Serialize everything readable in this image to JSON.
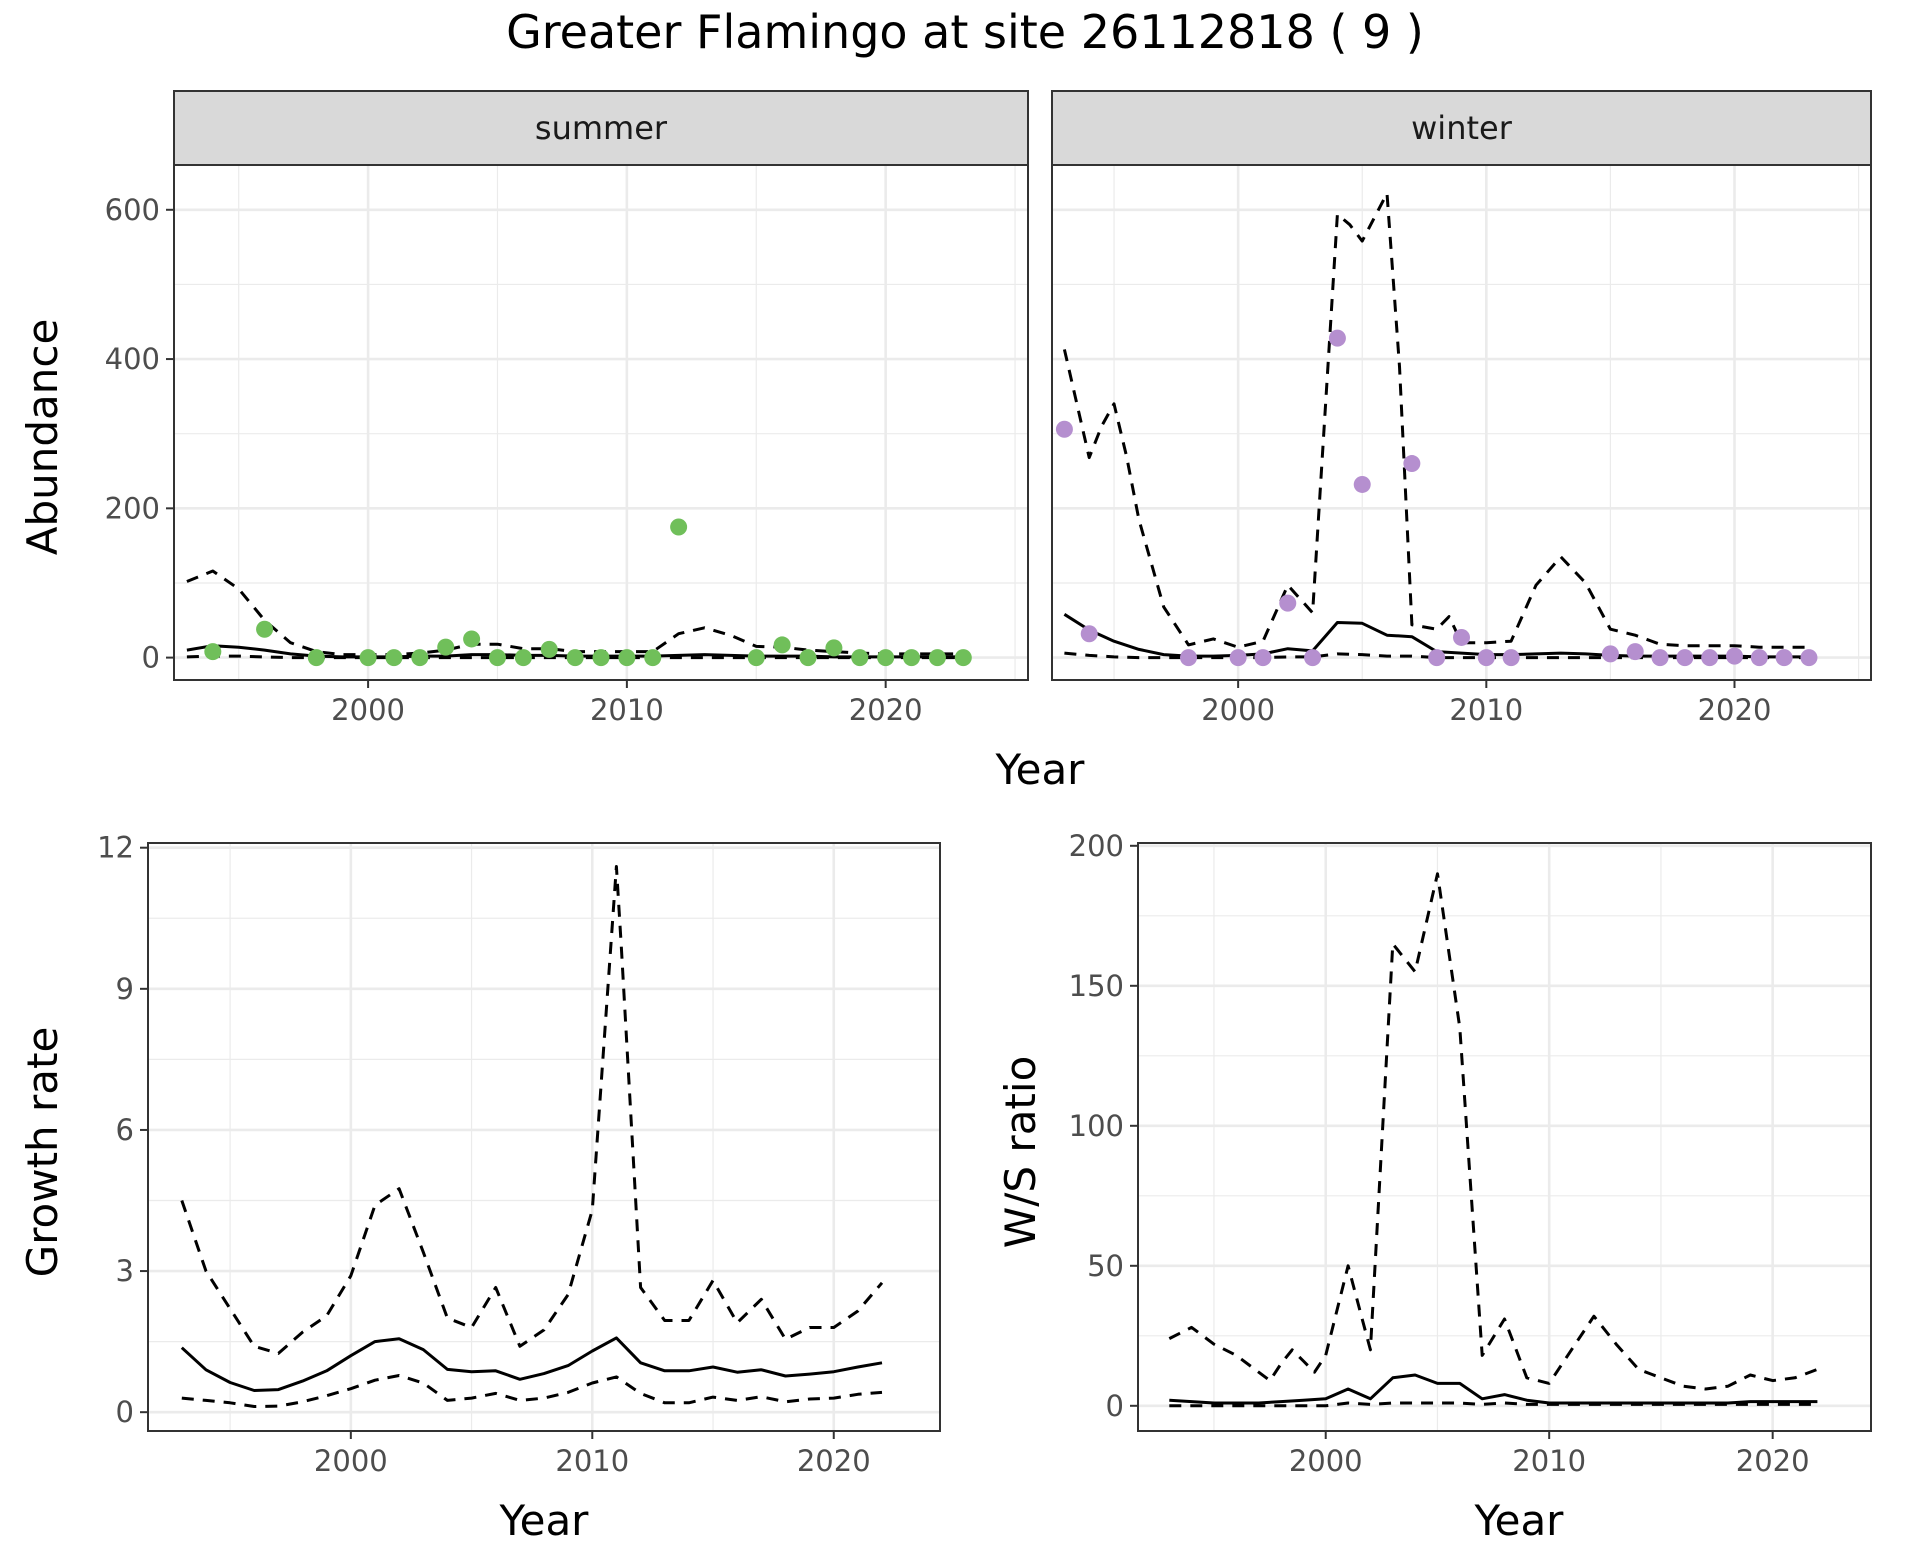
{
  "title": "Greater Flamingo at site 26112818 ( 9 )",
  "colors": {
    "summer_points": "#70bf5a",
    "winter_points": "#b58fcf",
    "lines": "#000000",
    "strip_bg": "#d9d9d9",
    "grid": "#ebebeb"
  },
  "chart_data": [
    {
      "type": "scatter",
      "panel": "summer",
      "strip_label": "summer",
      "xlabel": "Year",
      "ylabel": "Abundance",
      "xlim": [
        1992.5,
        2025.5
      ],
      "ylim": [
        -30,
        660
      ],
      "x_ticks": [
        2000,
        2010,
        2020
      ],
      "y_ticks": [
        0,
        200,
        400,
        600
      ],
      "grid": true,
      "points": {
        "x": [
          1994,
          1996,
          1998,
          2000,
          2001,
          2002,
          2003,
          2004,
          2005,
          2006,
          2007,
          2008,
          2009,
          2010,
          2011,
          2012,
          2015,
          2016,
          2017,
          2018,
          2019,
          2020,
          2021,
          2022,
          2023
        ],
        "y": [
          8,
          38,
          0,
          0,
          0,
          0,
          14,
          25,
          0,
          0,
          11,
          0,
          0,
          0,
          0,
          175,
          0,
          17,
          0,
          13,
          0,
          0,
          0,
          0,
          0
        ]
      },
      "series": [
        {
          "style": "solid",
          "x": [
            1993,
            1994,
            1995,
            1996,
            1997,
            1998,
            1999,
            2000,
            2001,
            2002,
            2003,
            2004,
            2005,
            2006,
            2007,
            2008,
            2009,
            2010,
            2011,
            2012,
            2013,
            2014,
            2015,
            2016,
            2017,
            2018,
            2019,
            2020,
            2021,
            2022,
            2023
          ],
          "values": [
            10,
            16,
            14,
            10,
            5,
            2,
            1,
            1,
            1,
            2,
            2,
            4,
            4,
            3,
            3,
            2,
            2,
            2,
            2,
            3,
            4,
            3,
            2,
            2,
            2,
            1,
            1,
            1,
            1,
            1,
            1
          ]
        },
        {
          "style": "dashed",
          "x": [
            1993,
            1994,
            1995,
            1996,
            1997,
            1998,
            1999,
            2000,
            2001,
            2002,
            2003,
            2004,
            2005,
            2006,
            2007,
            2008,
            2009,
            2010,
            2011,
            2012,
            2013,
            2014,
            2015,
            2016,
            2017,
            2018,
            2019,
            2020,
            2021,
            2022,
            2023
          ],
          "values": [
            102,
            116,
            92,
            50,
            20,
            8,
            4,
            4,
            4,
            6,
            10,
            18,
            18,
            12,
            12,
            8,
            8,
            8,
            8,
            32,
            40,
            30,
            15,
            14,
            10,
            8,
            6,
            5,
            5,
            5,
            5
          ]
        },
        {
          "style": "dashed",
          "x": [
            1993,
            1994,
            1995,
            1996,
            1997,
            1998,
            1999,
            2000,
            2001,
            2002,
            2003,
            2004,
            2005,
            2006,
            2007,
            2008,
            2009,
            2010,
            2011,
            2012,
            2013,
            2014,
            2015,
            2016,
            2017,
            2018,
            2019,
            2020,
            2021,
            2022,
            2023
          ],
          "values": [
            1,
            2,
            2,
            1,
            0,
            0,
            0,
            0,
            0,
            0,
            0,
            0,
            0,
            0,
            0,
            0,
            0,
            0,
            0,
            0,
            0,
            0,
            0,
            0,
            0,
            0,
            0,
            0,
            0,
            0,
            0
          ]
        }
      ]
    },
    {
      "type": "scatter",
      "panel": "winter",
      "strip_label": "winter",
      "xlabel": "Year",
      "ylabel": "Abundance",
      "xlim": [
        1992.5,
        2025.5
      ],
      "ylim": [
        -30,
        660
      ],
      "x_ticks": [
        2000,
        2010,
        2020
      ],
      "y_ticks": [
        0,
        200,
        400,
        600
      ],
      "grid": true,
      "points": {
        "x": [
          1993,
          1994,
          1998,
          2000,
          2001,
          2002,
          2003,
          2004,
          2005,
          2007,
          2008,
          2009,
          2010,
          2011,
          2015,
          2016,
          2017,
          2018,
          2019,
          2020,
          2021,
          2022,
          2023
        ],
        "y": [
          306,
          32,
          0,
          0,
          0,
          73,
          0,
          428,
          232,
          260,
          0,
          27,
          0,
          0,
          5,
          8,
          0,
          0,
          0,
          2,
          0,
          0,
          0
        ]
      },
      "series": [
        {
          "style": "solid",
          "x": [
            1993,
            1994,
            1995,
            1996,
            1997,
            1998,
            1999,
            2000,
            2001,
            2002,
            2003,
            2004,
            2005,
            2006,
            2007,
            2008,
            2009,
            2010,
            2011,
            2012,
            2013,
            2014,
            2015,
            2016,
            2017,
            2018,
            2019,
            2020,
            2021,
            2022,
            2023
          ],
          "values": [
            58,
            37,
            22,
            11,
            4,
            2,
            2,
            3,
            5,
            12,
            9,
            47,
            46,
            30,
            28,
            8,
            6,
            4,
            4,
            5,
            6,
            5,
            3,
            2,
            2,
            2,
            2,
            2,
            1,
            1,
            1
          ]
        },
        {
          "style": "dashed",
          "x": [
            1993,
            1994,
            1994.5,
            1995,
            1995.5,
            1996,
            1997,
            1998,
            1999,
            2000,
            2001,
            2002,
            2003,
            2004,
            2004.5,
            2005,
            2005.5,
            2006,
            2006.5,
            2007,
            2008,
            2008.5,
            2009,
            2010,
            2011,
            2012,
            2013,
            2014,
            2015,
            2016,
            2017,
            2018,
            2019,
            2020,
            2021,
            2022,
            2023
          ],
          "values": [
            413,
            268,
            310,
            340,
            270,
            185,
            68,
            17,
            25,
            14,
            22,
            97,
            60,
            594,
            580,
            558,
            590,
            622,
            390,
            44,
            38,
            55,
            20,
            20,
            22,
            97,
            135,
            100,
            38,
            30,
            18,
            16,
            16,
            16,
            14,
            14,
            14
          ]
        },
        {
          "style": "dashed",
          "x": [
            1993,
            1994,
            1995,
            1996,
            1997,
            1998,
            1999,
            2000,
            2001,
            2002,
            2003,
            2004,
            2005,
            2006,
            2007,
            2008,
            2009,
            2010,
            2011,
            2012,
            2013,
            2014,
            2015,
            2016,
            2017,
            2018,
            2019,
            2020,
            2021,
            2022,
            2023
          ],
          "values": [
            6,
            3,
            1,
            0,
            0,
            0,
            0,
            0,
            0,
            1,
            1,
            5,
            4,
            2,
            2,
            0,
            0,
            0,
            0,
            0,
            0,
            0,
            0,
            0,
            0,
            0,
            0,
            0,
            0,
            0,
            0
          ]
        }
      ]
    },
    {
      "type": "line",
      "panel": "growth",
      "xlabel": "Year",
      "ylabel": "Growth rate",
      "xlim": [
        1991.6,
        2024.4
      ],
      "ylim": [
        -0.4,
        12.1
      ],
      "x_ticks": [
        2000,
        2010,
        2020
      ],
      "y_ticks": [
        0,
        3,
        6,
        9,
        12
      ],
      "grid": true,
      "series": [
        {
          "style": "solid",
          "x": [
            1993,
            1994,
            1995,
            1996,
            1997,
            1998,
            1999,
            2000,
            2001,
            2002,
            2003,
            2004,
            2005,
            2006,
            2007,
            2008,
            2009,
            2010,
            2011,
            2012,
            2013,
            2014,
            2015,
            2016,
            2017,
            2018,
            2019,
            2020,
            2021,
            2022
          ],
          "values": [
            1.37,
            0.9,
            0.63,
            0.46,
            0.48,
            0.66,
            0.88,
            1.2,
            1.5,
            1.56,
            1.33,
            0.91,
            0.86,
            0.88,
            0.7,
            0.82,
            0.99,
            1.3,
            1.58,
            1.05,
            0.88,
            0.88,
            0.96,
            0.85,
            0.9,
            0.77,
            0.81,
            0.86,
            0.96,
            1.05
          ]
        },
        {
          "style": "dashed",
          "x": [
            1993,
            1994,
            1995,
            1996,
            1997,
            1998,
            1999,
            2000,
            2001,
            2002,
            2003,
            2004,
            2005,
            2006,
            2007,
            2008,
            2009,
            2010,
            2011,
            2011.2,
            2012,
            2013,
            2014,
            2015,
            2016,
            2017,
            2018,
            2019,
            2020,
            2021,
            2022
          ],
          "values": [
            4.5,
            3.0,
            2.2,
            1.4,
            1.25,
            1.7,
            2.05,
            2.9,
            4.4,
            4.75,
            3.4,
            2.0,
            1.8,
            2.65,
            1.4,
            1.75,
            2.5,
            4.3,
            11.6,
            9.9,
            2.65,
            1.95,
            1.95,
            2.8,
            1.9,
            2.4,
            1.55,
            1.8,
            1.8,
            2.15,
            2.75
          ]
        },
        {
          "style": "dashed",
          "x": [
            1993,
            1994,
            1995,
            1996,
            1997,
            1998,
            1999,
            2000,
            2001,
            2002,
            2003,
            2004,
            2005,
            2006,
            2007,
            2008,
            2009,
            2010,
            2011,
            2012,
            2013,
            2014,
            2015,
            2016,
            2017,
            2018,
            2019,
            2020,
            2021,
            2022
          ],
          "values": [
            0.3,
            0.25,
            0.2,
            0.12,
            0.13,
            0.22,
            0.35,
            0.5,
            0.68,
            0.78,
            0.62,
            0.25,
            0.3,
            0.4,
            0.25,
            0.3,
            0.42,
            0.62,
            0.75,
            0.4,
            0.2,
            0.2,
            0.32,
            0.25,
            0.33,
            0.22,
            0.28,
            0.3,
            0.38,
            0.42
          ]
        }
      ]
    },
    {
      "type": "line",
      "panel": "ratio",
      "xlabel": "Year",
      "ylabel": "W/S ratio",
      "xlim": [
        1991.6,
        2024.4
      ],
      "ylim": [
        -9,
        201
      ],
      "x_ticks": [
        2000,
        2010,
        2020
      ],
      "y_ticks": [
        0,
        50,
        100,
        150,
        200
      ],
      "grid": true,
      "series": [
        {
          "style": "solid",
          "x": [
            1993,
            1994,
            1995,
            1996,
            1997,
            1998,
            1999,
            2000,
            2001,
            2002,
            2003,
            2004,
            2005,
            2006,
            2007,
            2008,
            2009,
            2010,
            2011,
            2012,
            2013,
            2014,
            2015,
            2016,
            2017,
            2018,
            2019,
            2020,
            2021,
            2022
          ],
          "values": [
            2,
            1.5,
            1,
            1,
            1,
            1.5,
            2,
            2.5,
            6,
            2.5,
            10,
            11,
            8,
            8,
            2.5,
            4,
            2,
            1,
            1,
            1,
            1,
            1,
            1,
            1,
            1,
            1,
            1.5,
            1.5,
            1.5,
            1.5
          ]
        },
        {
          "style": "dashed",
          "x": [
            1993,
            1994,
            1995,
            1996,
            1997,
            1997.5,
            1998,
            1998.5,
            1999,
            1999.5,
            2000,
            2001,
            2001.5,
            2002,
            2003,
            2003.5,
            2004,
            2005,
            2006,
            2007,
            2008,
            2009,
            2010,
            2011,
            2012,
            2013,
            2014,
            2015,
            2016,
            2017,
            2018,
            2019,
            2020,
            2021,
            2022
          ],
          "values": [
            24,
            28,
            22,
            18,
            12,
            9,
            15,
            20,
            16,
            12,
            18,
            50,
            35,
            20,
            165,
            160,
            155,
            190,
            135,
            18,
            31,
            10,
            8,
            20,
            32,
            22,
            13,
            10,
            7,
            6,
            7,
            11,
            9,
            10,
            13
          ]
        },
        {
          "style": "dashed",
          "x": [
            1993,
            1994,
            1995,
            1996,
            1997,
            1998,
            1999,
            2000,
            2001,
            2002,
            2003,
            2004,
            2005,
            2006,
            2007,
            2008,
            2009,
            2010,
            2011,
            2012,
            2013,
            2014,
            2015,
            2016,
            2017,
            2018,
            2019,
            2020,
            2021,
            2022
          ],
          "values": [
            0,
            0,
            0,
            0,
            0,
            0,
            0,
            0,
            1,
            0.5,
            1,
            1,
            1,
            1,
            0.5,
            1,
            0.5,
            0.5,
            0.5,
            0.5,
            0.5,
            0.5,
            0.5,
            0.5,
            0.5,
            0.5,
            0.5,
            0.5,
            0.5,
            0.5
          ]
        }
      ]
    }
  ]
}
